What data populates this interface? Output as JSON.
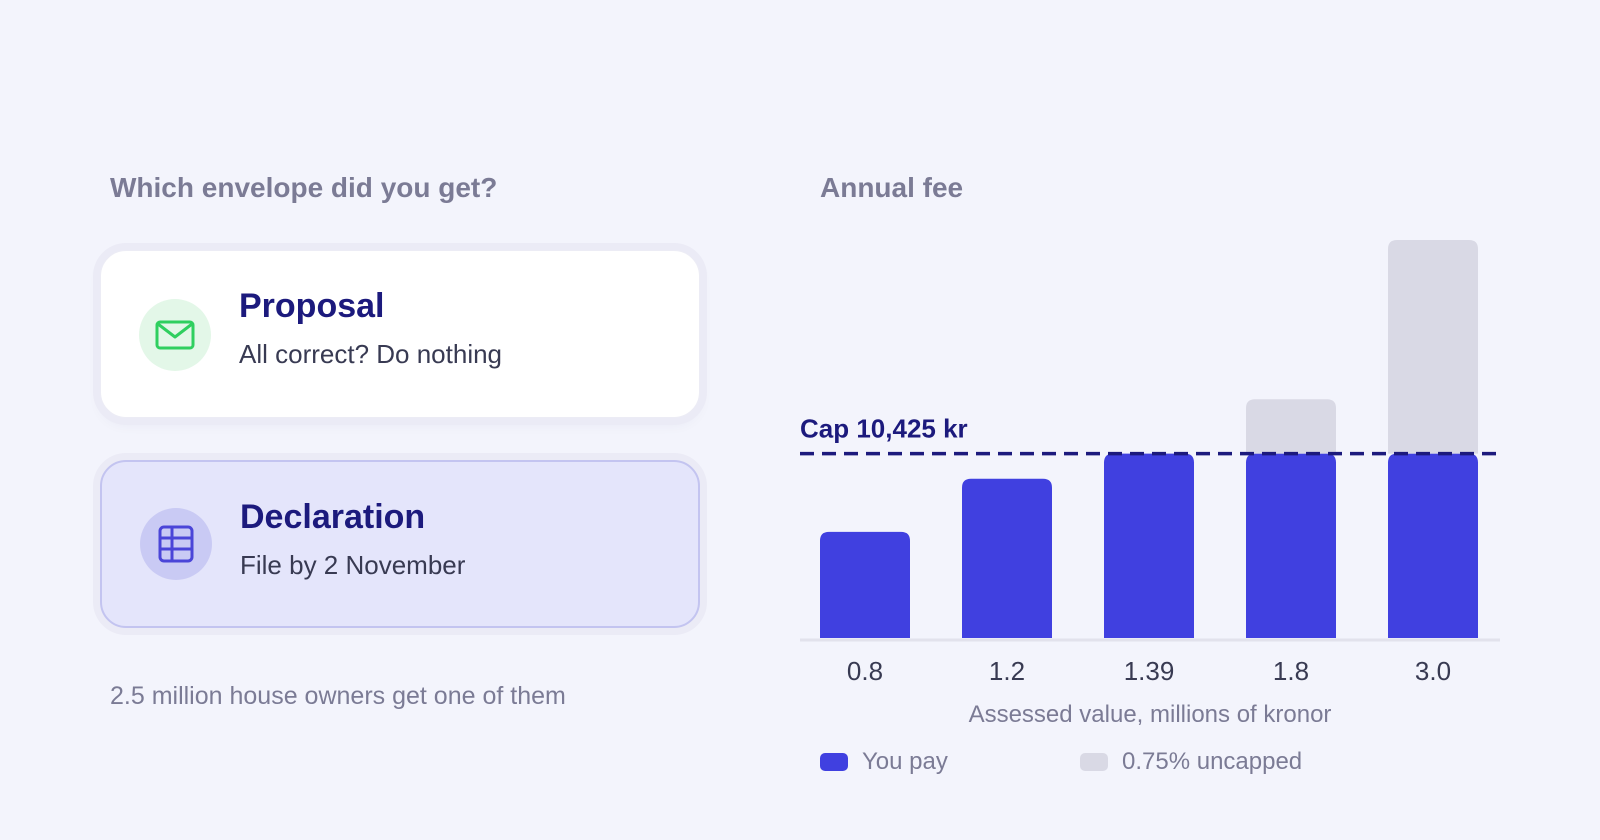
{
  "left": {
    "title": "Which envelope did you get?",
    "cards": [
      {
        "title": "Proposal",
        "subtitle": "All correct? Do nothing",
        "icon": "envelope-icon",
        "icon_color": "#2fcf5f"
      },
      {
        "title": "Declaration",
        "subtitle": "File by 2 November",
        "icon": "table-icon",
        "icon_color": "#4a45d8"
      }
    ],
    "footnote": "2.5 million house owners get one of them"
  },
  "right": {
    "title": "Annual fee"
  },
  "chart_data": {
    "type": "bar",
    "stacked": true,
    "title": "Annual fee",
    "xlabel": "Assessed value, millions of kronor",
    "ylabel": "",
    "categories": [
      "0.8",
      "1.2",
      "1.39",
      "1.8",
      "3.0"
    ],
    "series": [
      {
        "name": "You pay",
        "color": "#4040e0",
        "values": [
          6000,
          9000,
          10425,
          10425,
          10425
        ]
      },
      {
        "name": "0.75% uncapped",
        "color": "#d9d9e5",
        "values": [
          0,
          0,
          0,
          3075,
          12075
        ]
      }
    ],
    "cap": {
      "label": "Cap 10,425 kr",
      "value": 10425,
      "color": "#1c1a7d"
    },
    "ylim": [
      0,
      22500
    ],
    "grid": false,
    "legend": "bottom-left"
  }
}
